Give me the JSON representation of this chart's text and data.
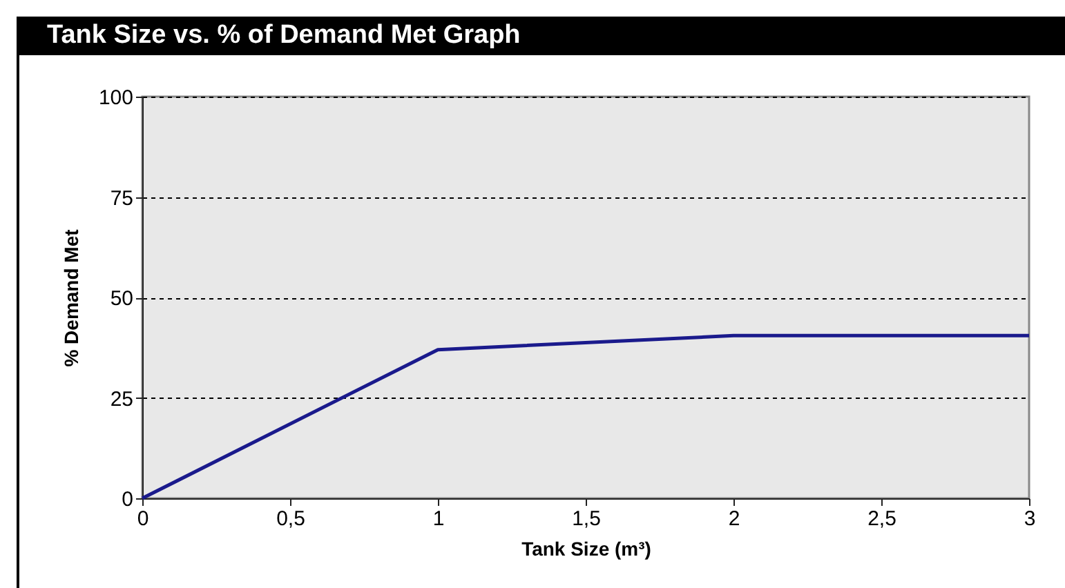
{
  "chart_data": {
    "type": "line",
    "title": "Tank Size vs. % of Demand Met Graph",
    "xlabel": "Tank Size (m³)",
    "ylabel": "% Demand Met",
    "x": [
      0,
      1,
      2,
      3
    ],
    "series": [
      {
        "color": "#1a1a8c",
        "values": [
          0,
          37,
          40.5,
          40.5
        ]
      }
    ],
    "xlim": [
      0,
      3
    ],
    "xticks": [
      0,
      {
        "value": 0.5,
        "label": "0,5"
      },
      1,
      {
        "value": 1.5,
        "label": "1,5"
      },
      2,
      {
        "value": 2.5,
        "label": "2,5"
      },
      3
    ],
    "ylim": [
      0,
      100
    ],
    "yticks": [
      0,
      25,
      50,
      75,
      100
    ],
    "grid": "y",
    "legend": false,
    "marker": "none",
    "line_style": "solid"
  }
}
